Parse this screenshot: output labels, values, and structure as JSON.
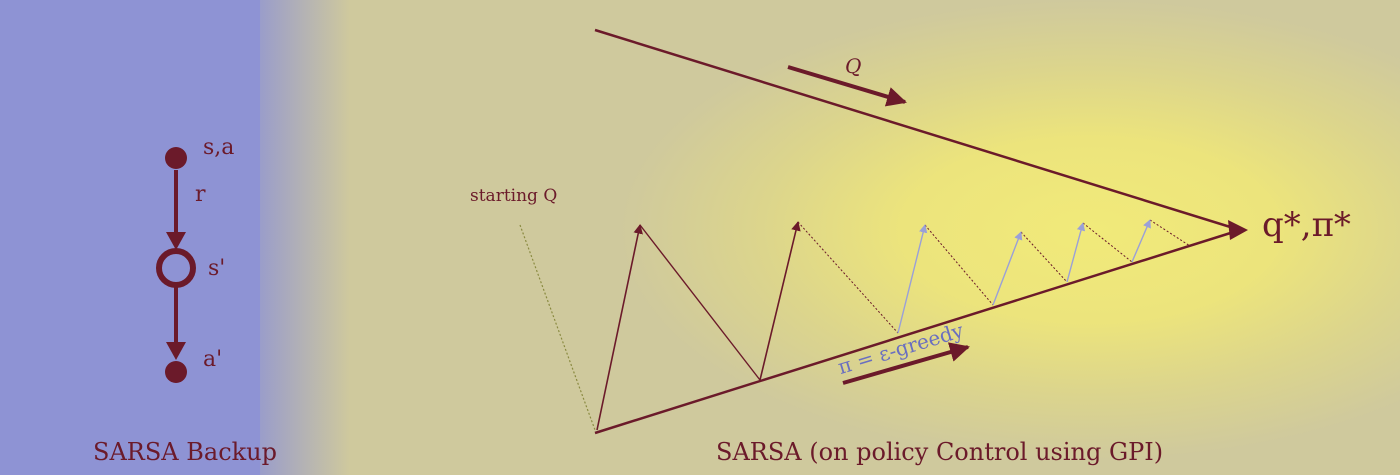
{
  "backup": {
    "label_sa": "s,a",
    "label_r": "r",
    "label_s_prime": "s'",
    "label_a_prime": "a'",
    "caption": "SARSA Backup"
  },
  "gpi": {
    "q_arrow_label": "Q",
    "starting_label": "starting Q",
    "target_label": "q*,π*",
    "policy_label": "π = ε-greedy",
    "caption": "SARSA (on policy Control using GPI)"
  },
  "colors": {
    "dark": "#6b1a2a",
    "faint_arrow": "#9aa0d8",
    "policy_text": "#6a6fc0",
    "dotted": "#8a8a40"
  }
}
